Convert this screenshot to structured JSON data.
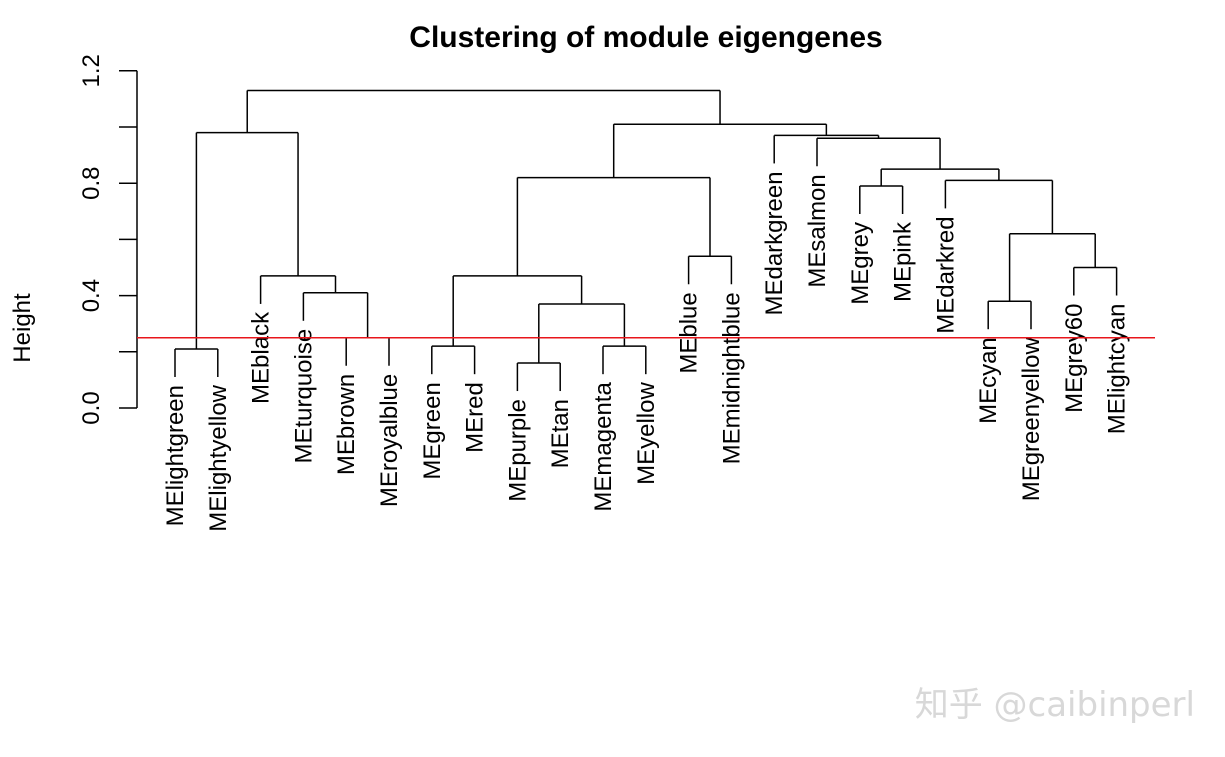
{
  "chart_data": {
    "type": "dendrogram",
    "title": "Clustering of module eigengenes",
    "ylabel": "Height",
    "xlabel": "",
    "ylim": [
      0,
      1.2
    ],
    "yticks": [
      "0.0",
      "0.4",
      "0.8",
      "1.2"
    ],
    "cut_line": {
      "height": 0.25,
      "color": "#e8151b"
    },
    "leaves": [
      {
        "label": "MElightgreen",
        "x": 1,
        "h": 0.21
      },
      {
        "label": "MElightyellow",
        "x": 2,
        "h": 0.21
      },
      {
        "label": "MEblack",
        "x": 3,
        "h": 0.47
      },
      {
        "label": "MEturquoise",
        "x": 4,
        "h": 0.41
      },
      {
        "label": "MEbrown",
        "x": 5,
        "h": 0.25
      },
      {
        "label": "MEroyalblue",
        "x": 6,
        "h": 0.25
      },
      {
        "label": "MEgreen",
        "x": 7,
        "h": 0.22
      },
      {
        "label": "MEred",
        "x": 8,
        "h": 0.22
      },
      {
        "label": "MEpurple",
        "x": 9,
        "h": 0.16
      },
      {
        "label": "MEtan",
        "x": 10,
        "h": 0.16
      },
      {
        "label": "MEmagenta",
        "x": 11,
        "h": 0.22
      },
      {
        "label": "MEyellow",
        "x": 12,
        "h": 0.22
      },
      {
        "label": "MEblue",
        "x": 13,
        "h": 0.54
      },
      {
        "label": "MEmidnightblue",
        "x": 14,
        "h": 0.54
      },
      {
        "label": "MEdarkgreen",
        "x": 15,
        "h": 0.97
      },
      {
        "label": "MEsalmon",
        "x": 16,
        "h": 0.96
      },
      {
        "label": "MEgrey",
        "x": 17,
        "h": 0.79
      },
      {
        "label": "MEpink",
        "x": 18,
        "h": 0.79
      },
      {
        "label": "MEdarkred",
        "x": 19,
        "h": 0.81
      },
      {
        "label": "MEcyan",
        "x": 20,
        "h": 0.38
      },
      {
        "label": "MEgreenyellow",
        "x": 21,
        "h": 0.38
      },
      {
        "label": "MEgrey60",
        "x": 22,
        "h": 0.5
      },
      {
        "label": "MElightcyan",
        "x": 23,
        "h": 0.5
      }
    ],
    "merges": [
      {
        "id": "m1",
        "left": "MElightgreen",
        "right": "MElightyellow",
        "height": 0.21
      },
      {
        "id": "m2",
        "left": "MEbrown",
        "right": "MEroyalblue",
        "height": 0.25
      },
      {
        "id": "m3",
        "left": "MEturquoise",
        "right": "m2",
        "height": 0.41
      },
      {
        "id": "m4",
        "left": "MEblack",
        "right": "m3",
        "height": 0.47
      },
      {
        "id": "m5",
        "left": "m1",
        "right": "m4",
        "height": 0.98
      },
      {
        "id": "m6",
        "left": "MEgreen",
        "right": "MEred",
        "height": 0.22
      },
      {
        "id": "m7",
        "left": "MEpurple",
        "right": "MEtan",
        "height": 0.16
      },
      {
        "id": "m8",
        "left": "MEmagenta",
        "right": "MEyellow",
        "height": 0.22
      },
      {
        "id": "m9",
        "left": "m7",
        "right": "m8",
        "height": 0.37
      },
      {
        "id": "m10",
        "left": "m6",
        "right": "m9",
        "height": 0.47
      },
      {
        "id": "m11",
        "left": "MEblue",
        "right": "MEmidnightblue",
        "height": 0.54
      },
      {
        "id": "m12",
        "left": "m10",
        "right": "m11",
        "height": 0.82
      },
      {
        "id": "m13",
        "left": "MEgrey",
        "right": "MEpink",
        "height": 0.79
      },
      {
        "id": "m14",
        "left": "MEcyan",
        "right": "MEgreenyellow",
        "height": 0.38
      },
      {
        "id": "m15",
        "left": "MEgrey60",
        "right": "MElightcyan",
        "height": 0.5
      },
      {
        "id": "m16",
        "left": "m14",
        "right": "m15",
        "height": 0.62
      },
      {
        "id": "m17",
        "left": "MEdarkred",
        "right": "m16",
        "height": 0.81
      },
      {
        "id": "m18",
        "left": "m13",
        "right": "m17",
        "height": 0.85
      },
      {
        "id": "m19",
        "left": "MEsalmon",
        "right": "m18",
        "height": 0.96
      },
      {
        "id": "m20",
        "left": "MEdarkgreen",
        "right": "m19",
        "height": 0.97
      },
      {
        "id": "m21",
        "left": "m12",
        "right": "m20",
        "height": 1.01
      },
      {
        "id": "m22",
        "left": "m5",
        "right": "m21",
        "height": 1.13
      }
    ]
  },
  "watermark": "知乎 @caibinperl"
}
